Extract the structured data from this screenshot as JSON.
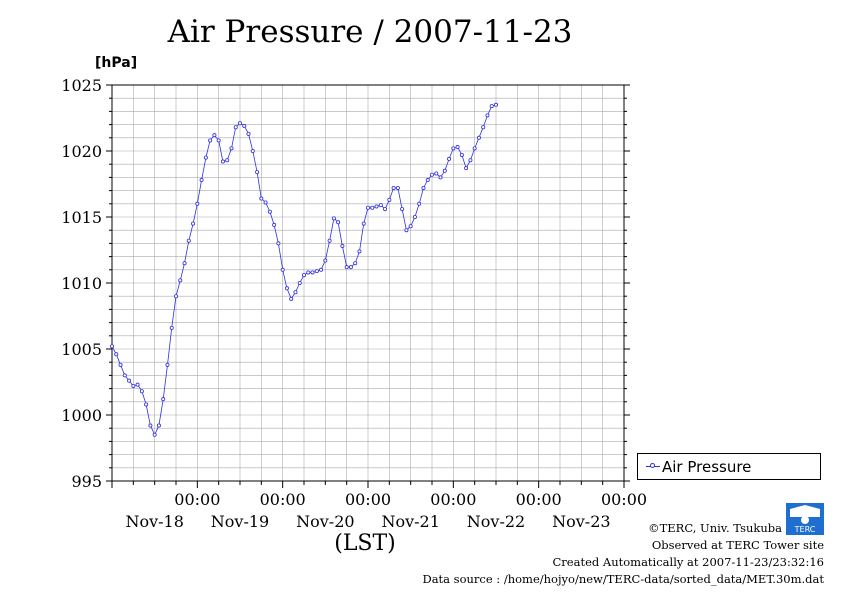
{
  "title": "Air Pressure / 2007-11-23",
  "unit_label": "[hPa]",
  "xlabel": "(LST)",
  "legend": {
    "label": "Air Pressure"
  },
  "colors": {
    "series": "#3030e0",
    "grid": "#aaaaaa"
  },
  "footer": {
    "copyright": "©TERC, Univ. Tsukuba",
    "observed": "Observed at TERC Tower site",
    "created": "Created Automatically at 2007-11-23/23:32:16",
    "source": "Data source : /home/hojyo/new/TERC-data/sorted_data/MET.30m.dat"
  },
  "logo": {
    "icon": "terc-logo-icon",
    "text": "TERC"
  },
  "chart_data": {
    "type": "line",
    "title": "Air Pressure / 2007-11-23",
    "ylabel": "[hPa]",
    "xlabel": "(LST)",
    "ylim": [
      995,
      1025
    ],
    "yticks": [
      995,
      1000,
      1005,
      1010,
      1015,
      1020,
      1025
    ],
    "xlim_days_from_nov18_0000": [
      -1,
      5
    ],
    "x_unit": "days from 2007-11-18 00:00 LST",
    "xticks": [
      {
        "pos": 0,
        "time": "00:00",
        "date": "Nov-18"
      },
      {
        "pos": 1,
        "time": "00:00",
        "date": "Nov-19"
      },
      {
        "pos": 2,
        "time": "00:00",
        "date": "Nov-20"
      },
      {
        "pos": 3,
        "time": "00:00",
        "date": "Nov-21"
      },
      {
        "pos": 4,
        "time": "00:00",
        "date": "Nov-22"
      },
      {
        "pos": 5,
        "time": "00:00",
        "date": "Nov-23"
      }
    ],
    "grid": true,
    "legend_position": "right",
    "series": [
      {
        "name": "Air Pressure",
        "points": [
          [
            -1.0,
            1005.2
          ],
          [
            -0.95,
            1004.6
          ],
          [
            -0.9,
            1003.8
          ],
          [
            -0.85,
            1003.0
          ],
          [
            -0.8,
            1002.6
          ],
          [
            -0.75,
            1002.2
          ],
          [
            -0.7,
            1002.3
          ],
          [
            -0.65,
            1001.8
          ],
          [
            -0.6,
            1000.8
          ],
          [
            -0.55,
            999.2
          ],
          [
            -0.5,
            998.5
          ],
          [
            -0.45,
            999.2
          ],
          [
            -0.4,
            1001.2
          ],
          [
            -0.35,
            1003.8
          ],
          [
            -0.3,
            1006.6
          ],
          [
            -0.25,
            1009.0
          ],
          [
            -0.2,
            1010.2
          ],
          [
            -0.15,
            1011.5
          ],
          [
            -0.1,
            1013.2
          ],
          [
            -0.05,
            1014.5
          ],
          [
            0.0,
            1016.0
          ],
          [
            0.05,
            1017.8
          ],
          [
            0.1,
            1019.5
          ],
          [
            0.15,
            1020.8
          ],
          [
            0.2,
            1021.2
          ],
          [
            0.25,
            1020.8
          ],
          [
            0.3,
            1019.2
          ],
          [
            0.35,
            1019.3
          ],
          [
            0.4,
            1020.2
          ],
          [
            0.45,
            1021.8
          ],
          [
            0.5,
            1022.1
          ],
          [
            0.55,
            1021.9
          ],
          [
            0.6,
            1021.3
          ],
          [
            0.65,
            1020.0
          ],
          [
            0.7,
            1018.4
          ],
          [
            0.75,
            1016.4
          ],
          [
            0.8,
            1016.1
          ],
          [
            0.85,
            1015.4
          ],
          [
            0.9,
            1014.4
          ],
          [
            0.95,
            1013.0
          ],
          [
            1.0,
            1011.0
          ],
          [
            1.05,
            1009.6
          ],
          [
            1.1,
            1008.8
          ],
          [
            1.15,
            1009.3
          ],
          [
            1.2,
            1010.0
          ],
          [
            1.25,
            1010.6
          ],
          [
            1.3,
            1010.8
          ],
          [
            1.35,
            1010.8
          ],
          [
            1.4,
            1010.9
          ],
          [
            1.45,
            1011.0
          ],
          [
            1.5,
            1011.7
          ],
          [
            1.55,
            1013.2
          ],
          [
            1.6,
            1014.9
          ],
          [
            1.65,
            1014.6
          ],
          [
            1.7,
            1012.8
          ],
          [
            1.75,
            1011.2
          ],
          [
            1.8,
            1011.2
          ],
          [
            1.85,
            1011.5
          ],
          [
            1.9,
            1012.4
          ],
          [
            1.95,
            1014.5
          ],
          [
            2.0,
            1015.7
          ],
          [
            2.05,
            1015.7
          ],
          [
            2.1,
            1015.8
          ],
          [
            2.15,
            1015.9
          ],
          [
            2.2,
            1015.6
          ],
          [
            2.25,
            1016.3
          ],
          [
            2.3,
            1017.2
          ],
          [
            2.35,
            1017.2
          ],
          [
            2.4,
            1015.6
          ],
          [
            2.45,
            1014.0
          ],
          [
            2.5,
            1014.3
          ],
          [
            2.55,
            1015.0
          ],
          [
            2.6,
            1016.0
          ],
          [
            2.65,
            1017.2
          ],
          [
            2.7,
            1017.8
          ],
          [
            2.75,
            1018.2
          ],
          [
            2.8,
            1018.3
          ],
          [
            2.85,
            1018.0
          ],
          [
            2.9,
            1018.5
          ],
          [
            2.95,
            1019.4
          ],
          [
            3.0,
            1020.2
          ],
          [
            3.05,
            1020.3
          ],
          [
            3.1,
            1019.7
          ],
          [
            3.15,
            1018.7
          ],
          [
            3.2,
            1019.3
          ],
          [
            3.25,
            1020.2
          ],
          [
            3.3,
            1021.0
          ],
          [
            3.35,
            1021.8
          ],
          [
            3.4,
            1022.7
          ],
          [
            3.45,
            1023.4
          ],
          [
            3.5,
            1023.5
          ]
        ]
      }
    ]
  }
}
